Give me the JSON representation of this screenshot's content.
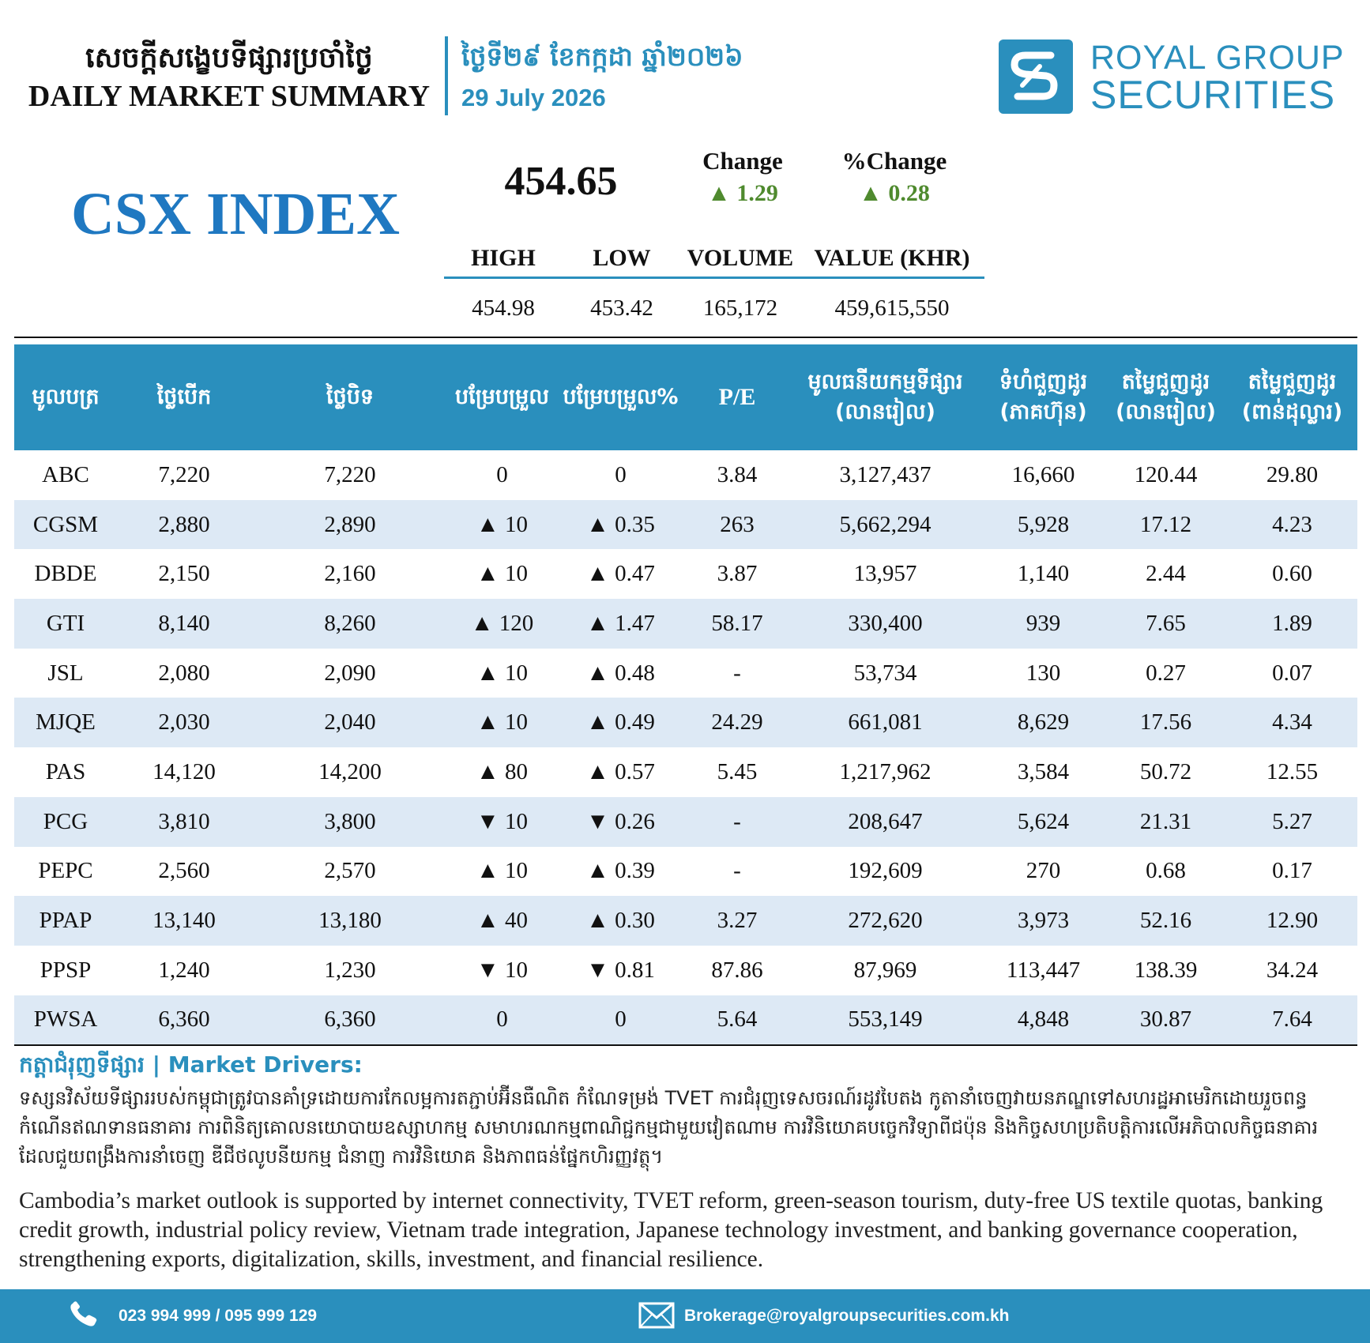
{
  "header": {
    "title_kh": "សេចក្ដីសង្ខេបទីផ្សារប្រចាំថ្ងៃ",
    "title_en": "DAILY MARKET SUMMARY",
    "date_kh": "ថ្ងៃទី២៩ ខែកក្កដា ឆ្នាំ២០២៦",
    "date_en": "29 July 2026",
    "logo_line1": "ROYAL GROUP",
    "logo_line2": "SECURITIES"
  },
  "index": {
    "name": "CSX INDEX",
    "value": "454.65",
    "change_label": "Change",
    "change_value": "▲ 1.29",
    "pct_label": "%Change",
    "pct_value": "▲ 0.28",
    "stats": {
      "labels": [
        "HIGH",
        "LOW",
        "VOLUME",
        "VALUE (KHR)"
      ],
      "values": [
        "454.98",
        "453.42",
        "165,172",
        "459,615,550"
      ]
    }
  },
  "table": {
    "headers": [
      "មូលបត្រ",
      "ថ្លៃបើក",
      "ថ្លៃបិទ",
      "បម្រែបម្រួល",
      "បម្រែបម្រួល%",
      "P/E",
      "មូលធនីយកម្មទីផ្សារ\n(លានរៀល)",
      "ទំហំជួញដូរ\n(ភាគហ៊ុន)",
      "តម្លៃជួញដូរ\n(លានរៀល)",
      "តម្លៃជួញដូរ\n(ពាន់ដុល្លារ)"
    ],
    "rows": [
      {
        "sym": "ABC",
        "open": "7,220",
        "close": "7,220",
        "chg": "0",
        "pct": "0",
        "dir": "flat",
        "pe": "3.84",
        "mcap": "3,127,437",
        "vol": "16,660",
        "val_khr": "120.44",
        "val_usd": "29.80"
      },
      {
        "sym": "CGSM",
        "open": "2,880",
        "close": "2,890",
        "chg": "▲ 10",
        "pct": "▲ 0.35",
        "dir": "up",
        "pe": "263",
        "mcap": "5,662,294",
        "vol": "5,928",
        "val_khr": "17.12",
        "val_usd": "4.23"
      },
      {
        "sym": "DBDE",
        "open": "2,150",
        "close": "2,160",
        "chg": "▲ 10",
        "pct": "▲ 0.47",
        "dir": "up",
        "pe": "3.87",
        "mcap": "13,957",
        "vol": "1,140",
        "val_khr": "2.44",
        "val_usd": "0.60"
      },
      {
        "sym": "GTI",
        "open": "8,140",
        "close": "8,260",
        "chg": "▲ 120",
        "pct": "▲ 1.47",
        "dir": "up",
        "pe": "58.17",
        "mcap": "330,400",
        "vol": "939",
        "val_khr": "7.65",
        "val_usd": "1.89"
      },
      {
        "sym": "JSL",
        "open": "2,080",
        "close": "2,090",
        "chg": "▲ 10",
        "pct": "▲ 0.48",
        "dir": "up",
        "pe": "-",
        "mcap": "53,734",
        "vol": "130",
        "val_khr": "0.27",
        "val_usd": "0.07"
      },
      {
        "sym": "MJQE",
        "open": "2,030",
        "close": "2,040",
        "chg": "▲ 10",
        "pct": "▲ 0.49",
        "dir": "up",
        "pe": "24.29",
        "mcap": "661,081",
        "vol": "8,629",
        "val_khr": "17.56",
        "val_usd": "4.34"
      },
      {
        "sym": "PAS",
        "open": "14,120",
        "close": "14,200",
        "chg": "▲ 80",
        "pct": "▲ 0.57",
        "dir": "up",
        "pe": "5.45",
        "mcap": "1,217,962",
        "vol": "3,584",
        "val_khr": "50.72",
        "val_usd": "12.55"
      },
      {
        "sym": "PCG",
        "open": "3,810",
        "close": "3,800",
        "chg": "▼ 10",
        "pct": "▼ 0.26",
        "dir": "down",
        "pe": "-",
        "mcap": "208,647",
        "vol": "5,624",
        "val_khr": "21.31",
        "val_usd": "5.27"
      },
      {
        "sym": "PEPC",
        "open": "2,560",
        "close": "2,570",
        "chg": "▲ 10",
        "pct": "▲ 0.39",
        "dir": "up",
        "pe": "-",
        "mcap": "192,609",
        "vol": "270",
        "val_khr": "0.68",
        "val_usd": "0.17"
      },
      {
        "sym": "PPAP",
        "open": "13,140",
        "close": "13,180",
        "chg": "▲ 40",
        "pct": "▲ 0.30",
        "dir": "up",
        "pe": "3.27",
        "mcap": "272,620",
        "vol": "3,973",
        "val_khr": "52.16",
        "val_usd": "12.90"
      },
      {
        "sym": "PPSP",
        "open": "1,240",
        "close": "1,230",
        "chg": "▼ 10",
        "pct": "▼ 0.81",
        "dir": "down",
        "pe": "87.86",
        "mcap": "87,969",
        "vol": "113,447",
        "val_khr": "138.39",
        "val_usd": "34.24"
      },
      {
        "sym": "PWSA",
        "open": "6,360",
        "close": "6,360",
        "chg": "0",
        "pct": "0",
        "dir": "flat",
        "pe": "5.64",
        "mcap": "553,149",
        "vol": "4,848",
        "val_khr": "30.87",
        "val_usd": "7.64"
      }
    ]
  },
  "drivers": {
    "title": "កត្តាជំរុញទីផ្សារ | Market Drivers:",
    "text_kh": "ទស្សនវិស័យទីផ្សាររបស់កម្ពុជាត្រូវបានគាំទ្រដោយការកែលម្អការតភ្ជាប់អ៊ីនធឺណិត កំណែទម្រង់ TVET ការជំរុញទេសចរណ៍រដូវបៃតង កូតានាំចេញវាយនភណ្ឌទៅសហរដ្ឋអាមេរិកដោយរួចពន្ធ កំណើនឥណទានធនាគារ ការពិនិត្យគោលនយោបាយឧស្សាហកម្ម សមាហរណកម្មពាណិជ្ជកម្មជាមួយវៀតណាម ការវិនិយោគបច្ចេកវិទ្យាពីជប៉ុន និងកិច្ចសហប្រតិបត្តិការលើអភិបាលកិច្ចធនាគារ ដែលជួយពង្រឹងការនាំចេញ ឌីជីថលូបនីយកម្ម ជំនាញ ការវិនិយោគ និងភាពធន់ផ្នែកហិរញ្ញវត្ថុ។",
    "text_en": "Cambodia’s market outlook is supported by internet connectivity, TVET reform, green-season tourism, duty-free US textile quotas, banking credit growth, industrial policy review, Vietnam trade integration, Japanese technology investment, and banking governance cooperation, strengthening exports, digitalization, skills, investment, and financial resilience."
  },
  "footer": {
    "phone": "023 994 999 / 095 999 129",
    "email": "Brokerage@royalgroupsecurities.com.kh"
  },
  "colors": {
    "brand": "#2a8fbd",
    "index_title": "#1f78c1",
    "up": "#4f8a2e",
    "down": "#c8141e",
    "row_alt": "#dde9f5"
  }
}
